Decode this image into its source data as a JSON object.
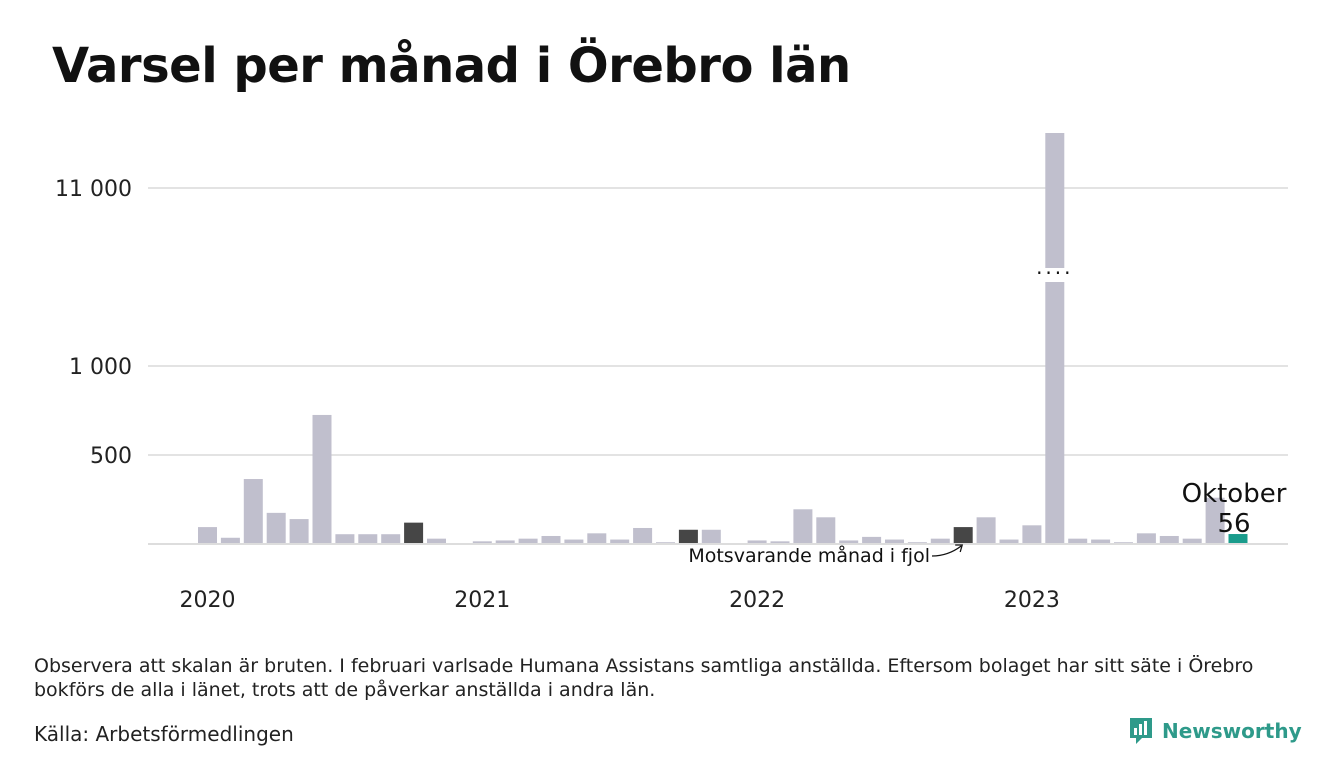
{
  "title": "Varsel per månad i Örebro län",
  "note": "Observera att skalan är bruten. I februari varlsade Humana Assistans samtliga anställda. Eftersom bolaget har sitt säte i Örebro bokförs de alla i länet, trots att de påverkar anställda i andra län.",
  "source": "Källa: Arbetsförmedlingen",
  "brand": {
    "name": "Newsworthy",
    "icon": "newsworthy-logo-icon"
  },
  "colors": {
    "default": "#c0bfcd",
    "previous_year": "#464646",
    "current": "#1a9c8c",
    "grid": "#e3e3e3",
    "text": "#111111"
  },
  "chart_data": {
    "type": "bar",
    "title": "Varsel per månad i Örebro län",
    "broken_axis": true,
    "grid": true,
    "y_ticks": [
      {
        "value": 500,
        "label": "500"
      },
      {
        "value": 1000,
        "label": "1 000"
      },
      {
        "value": 11000,
        "label": "11 000"
      }
    ],
    "year_labels": [
      {
        "year": "2020",
        "index": 0
      },
      {
        "year": "2021",
        "index": 12
      },
      {
        "year": "2022",
        "index": 24
      },
      {
        "year": "2023",
        "index": 36
      }
    ],
    "series": [
      {
        "values": [
          95,
          35,
          365,
          175,
          140,
          725,
          55,
          55,
          55,
          120,
          30,
          5,
          15,
          20,
          30,
          45,
          25,
          60,
          25,
          90,
          10,
          80,
          80,
          5,
          20,
          15,
          195,
          150,
          20,
          40,
          25,
          10,
          30,
          95,
          150,
          25,
          105,
          12000,
          30,
          25,
          10,
          60,
          45,
          30,
          260,
          56
        ]
      }
    ],
    "highlight": {
      "previous_year_indices": [
        9,
        21,
        33
      ],
      "current_index": 45,
      "current_label": "Oktober",
      "current_value": "56"
    },
    "annotation": "Motsvarande månad i fjol"
  }
}
